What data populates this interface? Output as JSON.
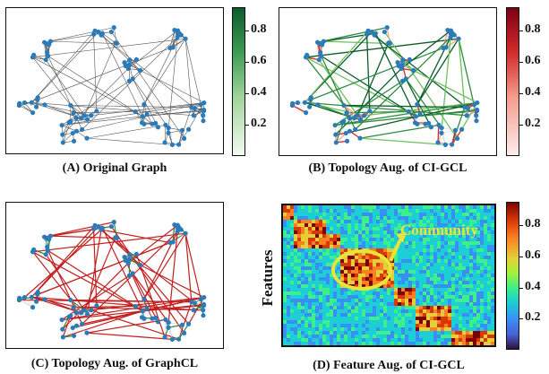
{
  "panels": {
    "a": {
      "caption": "(A) Original Graph"
    },
    "b": {
      "caption": "(B) Topology Aug. of CI-GCL"
    },
    "c": {
      "caption": "(C) Topology Aug. of GraphCL"
    },
    "d": {
      "caption": "(D) Feature Aug. of CI-GCL",
      "ylabel": "Features",
      "annotation": "Community"
    }
  },
  "colorbars": {
    "green": {
      "ticks": [
        "0.8",
        "0.6",
        "0.4",
        "0.2"
      ],
      "colors": [
        "#0b5c2a",
        "#f4faf2"
      ]
    },
    "red": {
      "ticks": [
        "0.8",
        "0.6",
        "0.4",
        "0.2"
      ],
      "colors": [
        "#7d0016",
        "#fdeceb"
      ]
    },
    "jet": {
      "ticks": [
        "0.8",
        "0.6",
        "0.4",
        "0.2"
      ]
    }
  },
  "colors": {
    "node": "#2b7bba",
    "annotation": "#e8e43a"
  }
}
